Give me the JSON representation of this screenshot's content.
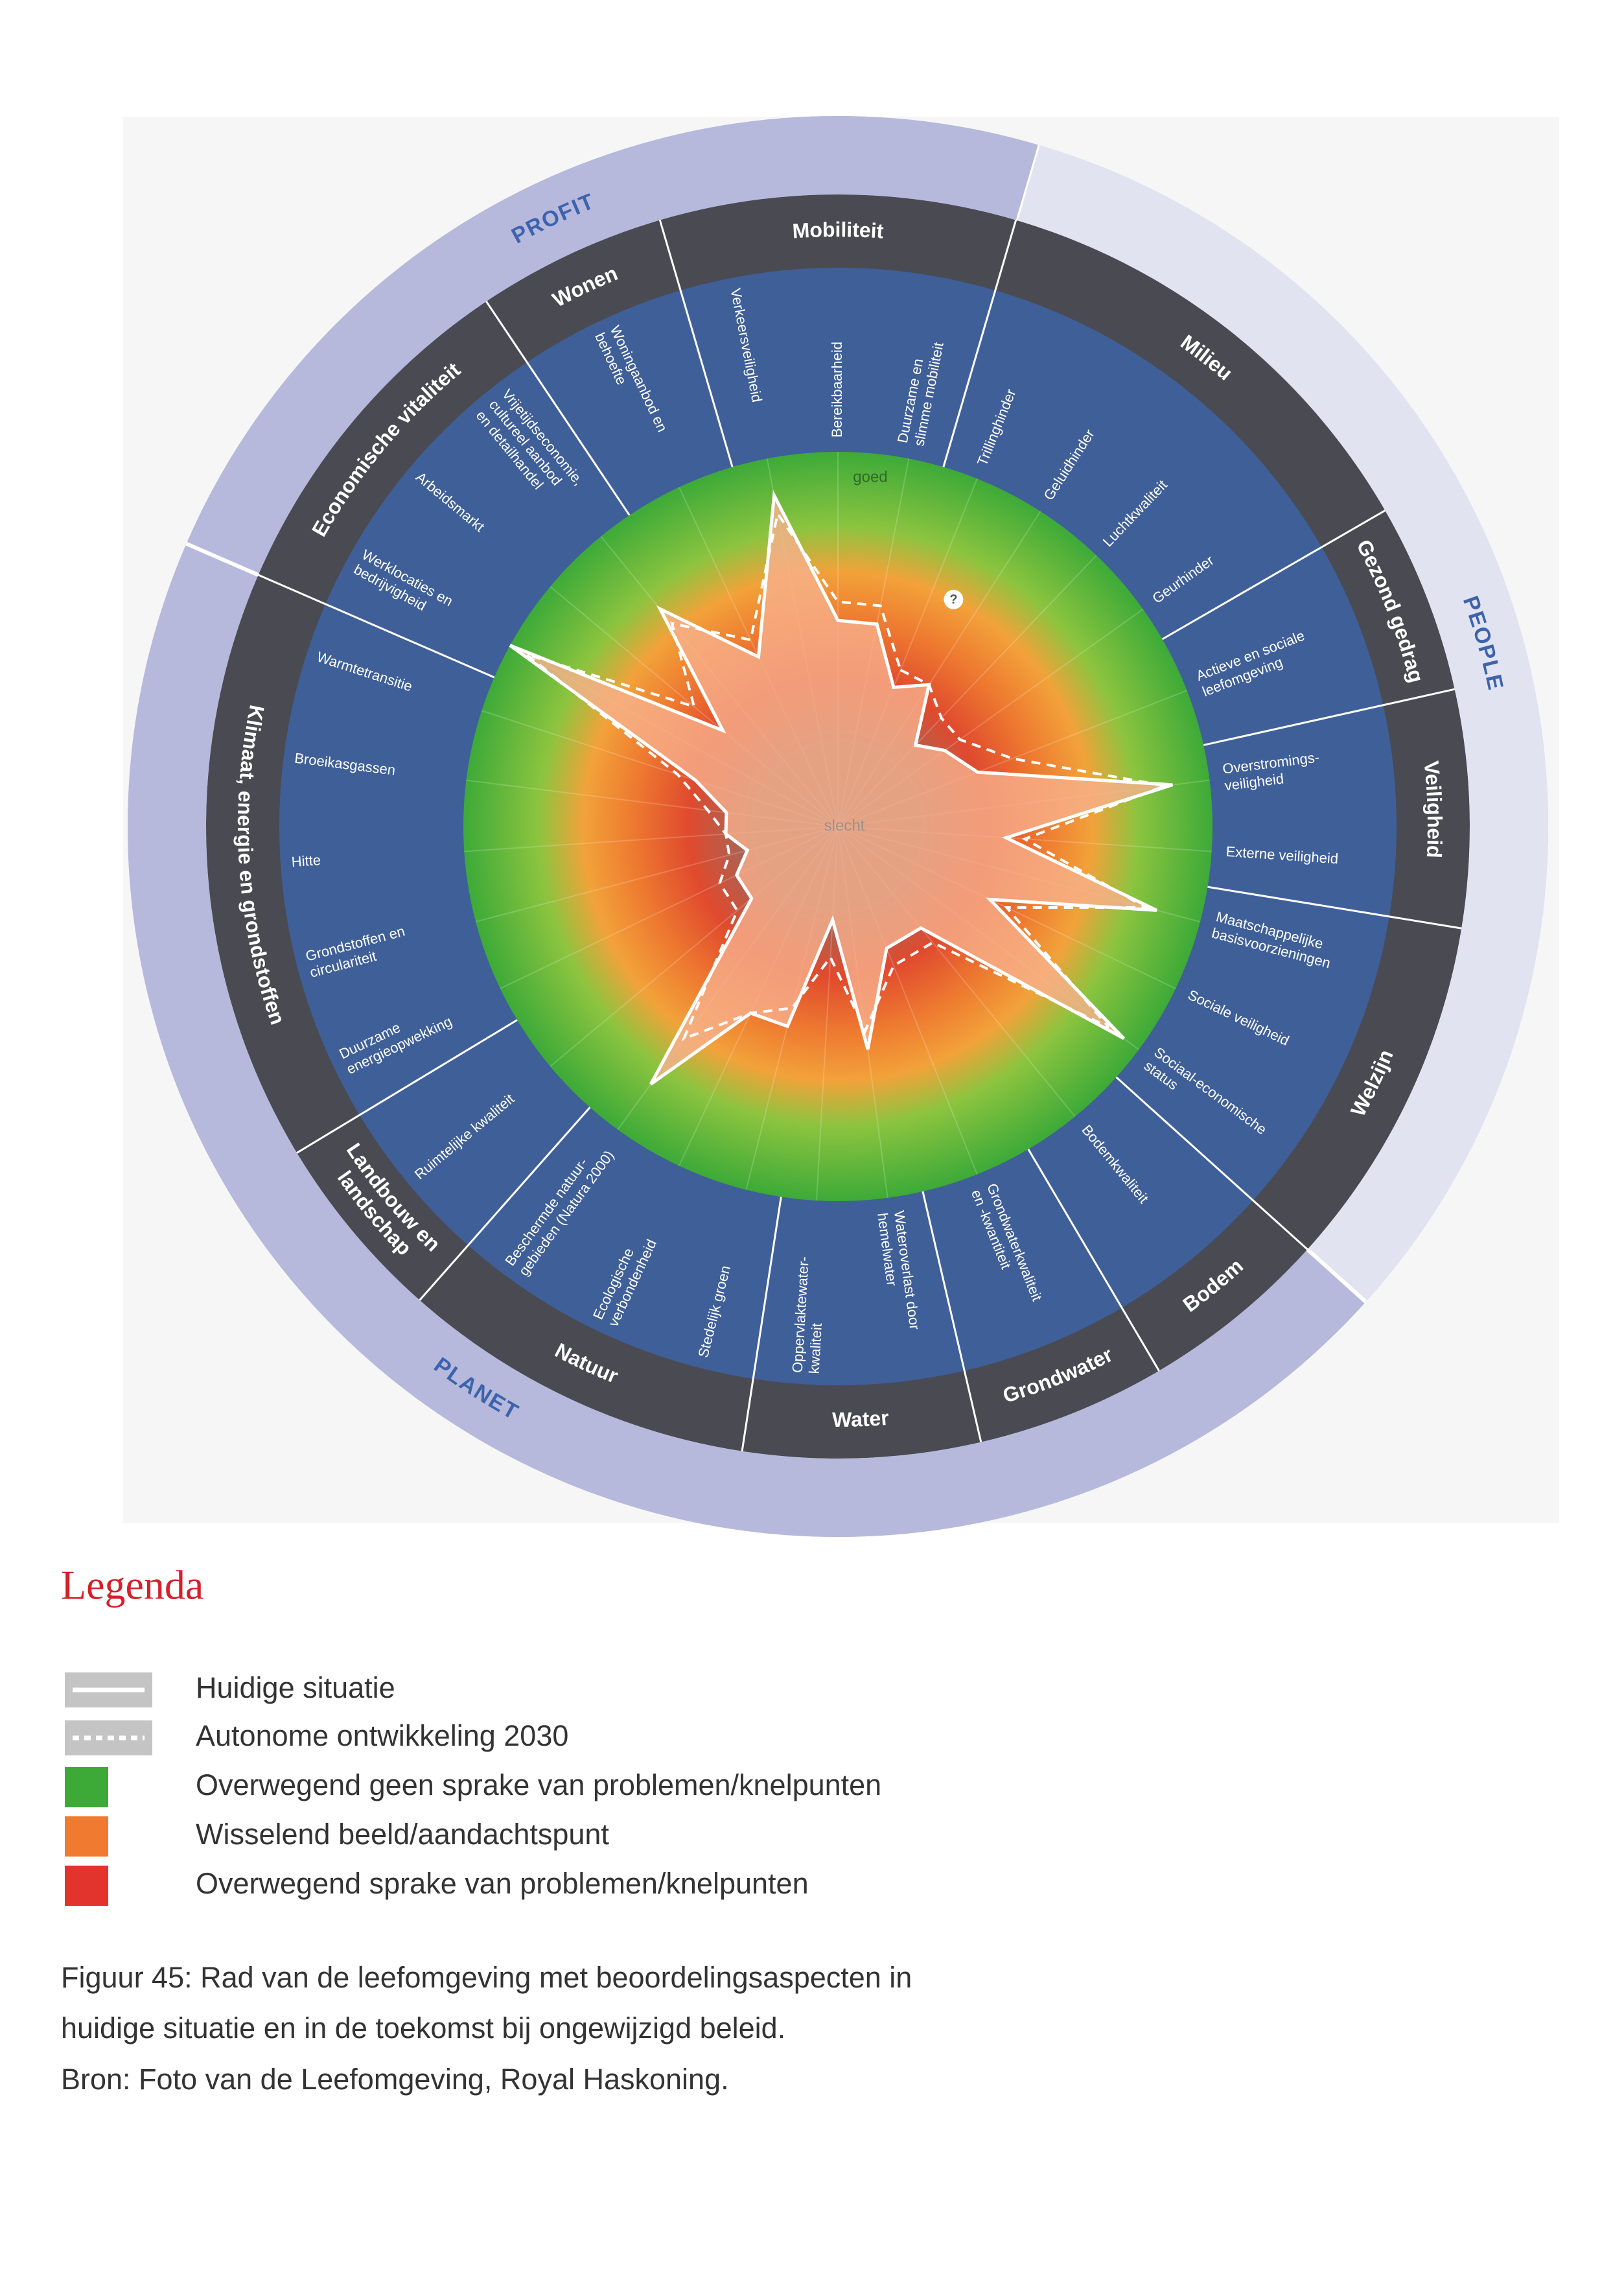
{
  "wheel": {
    "scale": {
      "max_label": "goed",
      "min_label": "slecht"
    },
    "unknown_marker": "?",
    "groups": [
      {
        "label": "PEOPLE",
        "sectors": [
          {
            "name": [
              "Milieu"
            ],
            "aspects": [
              {
                "label": [
                  "Trillinghinder"
                ],
                "current": 40,
                "autonomous": 45
              },
              {
                "label": [
                  "Geluidhinder"
                ],
                "current": 45,
                "autonomous": 45
              },
              {
                "label": [
                  "Luchtkwaliteit"
                ],
                "current": 30,
                "autonomous": 40
              },
              {
                "label": [
                  "Geurhinder"
                ],
                "current": 35,
                "autonomous": 40
              }
            ]
          },
          {
            "name": [
              "Gezond gedrag"
            ],
            "aspects": [
              {
                "label": [
                  "Actieve en sociale",
                  "leefomgeving"
                ],
                "current": 40,
                "autonomous": 50
              }
            ]
          },
          {
            "name": [
              "Veiligheid"
            ],
            "aspects": [
              {
                "label": [
                  "Overstromings-",
                  "veiligheid"
                ],
                "current": 90,
                "autonomous": 88
              },
              {
                "label": [
                  "Externe veiligheid"
                ],
                "current": 45,
                "autonomous": 50
              }
            ]
          },
          {
            "name": [
              "Welzijn"
            ],
            "aspects": [
              {
                "label": [
                  "Maatschappelijke",
                  "basisvoorzieningen"
                ],
                "current": 88,
                "autonomous": 85
              },
              {
                "label": [
                  "Sociale veiligheid"
                ],
                "current": 45,
                "autonomous": 50
              },
              {
                "label": [
                  "Sociaal-economische",
                  "status"
                ],
                "current": 95,
                "autonomous": 90
              }
            ]
          }
        ]
      },
      {
        "label": "PLANET",
        "sectors": [
          {
            "name": [
              "Bodem"
            ],
            "aspects": [
              {
                "label": [
                  "Bodemkwaliteit"
                ],
                "current": 35,
                "autonomous": 40
              }
            ]
          },
          {
            "name": [
              "Grondwater"
            ],
            "aspects": [
              {
                "label": [
                  "Grondwaterkwaliteit",
                  "en -kwantiteit"
                ],
                "current": 35,
                "autonomous": 40
              }
            ]
          },
          {
            "name": [
              "Water"
            ],
            "aspects": [
              {
                "label": [
                  "Wateroverlast door",
                  "hemelwater"
                ],
                "current": 60,
                "autonomous": 55
              },
              {
                "label": [
                  "Oppervlaktewater-",
                  "kwaliteit"
                ],
                "current": 25,
                "autonomous": 35
              }
            ]
          },
          {
            "name": [
              "Natuur"
            ],
            "aspects": [
              {
                "label": [
                  "Stedelijk groen"
                ],
                "current": 55,
                "autonomous": 50
              },
              {
                "label": [
                  "Ecologische",
                  "verbondenheid"
                ],
                "current": 55,
                "autonomous": 55
              },
              {
                "label": [
                  "Beschermde natuur-",
                  "gebieden (Natura 2000)"
                ],
                "current": 85,
                "autonomous": 70
              }
            ]
          },
          {
            "name": [
              "Landbouw en",
              "landschap"
            ],
            "aspects": [
              {
                "label": [
                  "Ruimtelijke kwaliteit"
                ],
                "current": 30,
                "autonomous": 35
              }
            ]
          },
          {
            "name": [
              "Klimaat, energie en grondstoffen"
            ],
            "aspects": [
              {
                "label": [
                  "Duurzame",
                  "energieopwekking"
                ],
                "current": 30,
                "autonomous": 35
              },
              {
                "label": [
                  "Grondstoffen en",
                  "circulariteit"
                ],
                "current": 25,
                "autonomous": 30
              },
              {
                "label": [
                  "Hitte"
                ],
                "current": 30,
                "autonomous": 30
              },
              {
                "label": [
                  "Broeikasgassen"
                ],
                "current": 30,
                "autonomous": 35
              },
              {
                "label": [
                  "Warmtetransitie"
                ],
                "current": 40,
                "autonomous": 45
              }
            ]
          }
        ]
      },
      {
        "label": "PROFIT",
        "sectors": [
          {
            "name": [
              "Economische vitaliteit"
            ],
            "aspects": [
              {
                "label": [
                  "Werklocaties en",
                  "bedrijvigheid"
                ],
                "current": 100,
                "autonomous": 95
              },
              {
                "label": [
                  "Arbeidsmarkt"
                ],
                "current": 40,
                "autonomous": 50
              },
              {
                "label": [
                  "Vrijetijdseconomie,",
                  "cultureel aanbod",
                  "en detailhandel"
                ],
                "current": 75,
                "autonomous": 70
              }
            ]
          },
          {
            "name": [
              "Wonen"
            ],
            "aspects": [
              {
                "label": [
                  "Woningaanbod en",
                  "behoefte"
                ],
                "current": 50,
                "autonomous": 55
              }
            ]
          },
          {
            "name": [
              "Mobiliteit"
            ],
            "aspects": [
              {
                "label": [
                  "Verkeersveiligheid"
                ],
                "current": 90,
                "autonomous": 85
              },
              {
                "label": [
                  "Bereikbaarheid"
                ],
                "current": 55,
                "autonomous": 60
              },
              {
                "label": [
                  "Duurzame en",
                  "slimme mobiliteit"
                ],
                "current": 55,
                "autonomous": 60
              }
            ]
          }
        ]
      }
    ]
  },
  "legend": {
    "title": "Legenda",
    "items": [
      {
        "label": "Huidige situatie"
      },
      {
        "label": "Autonome ontwikkeling 2030"
      },
      {
        "label": "Overwegend geen sprake van problemen/knelpunten"
      },
      {
        "label": "Wisselend beeld/aandachtspunt"
      },
      {
        "label": "Overwegend sprake van problemen/knelpunten"
      }
    ]
  },
  "caption": [
    "Figuur 45: Rad van de leefomgeving met beoordelingsaspecten in",
    "huidige situatie en in de toekomst bij ongewijzigd beleid.",
    "Bron: Foto van de Leefomgeving, Royal Haskoning."
  ]
}
